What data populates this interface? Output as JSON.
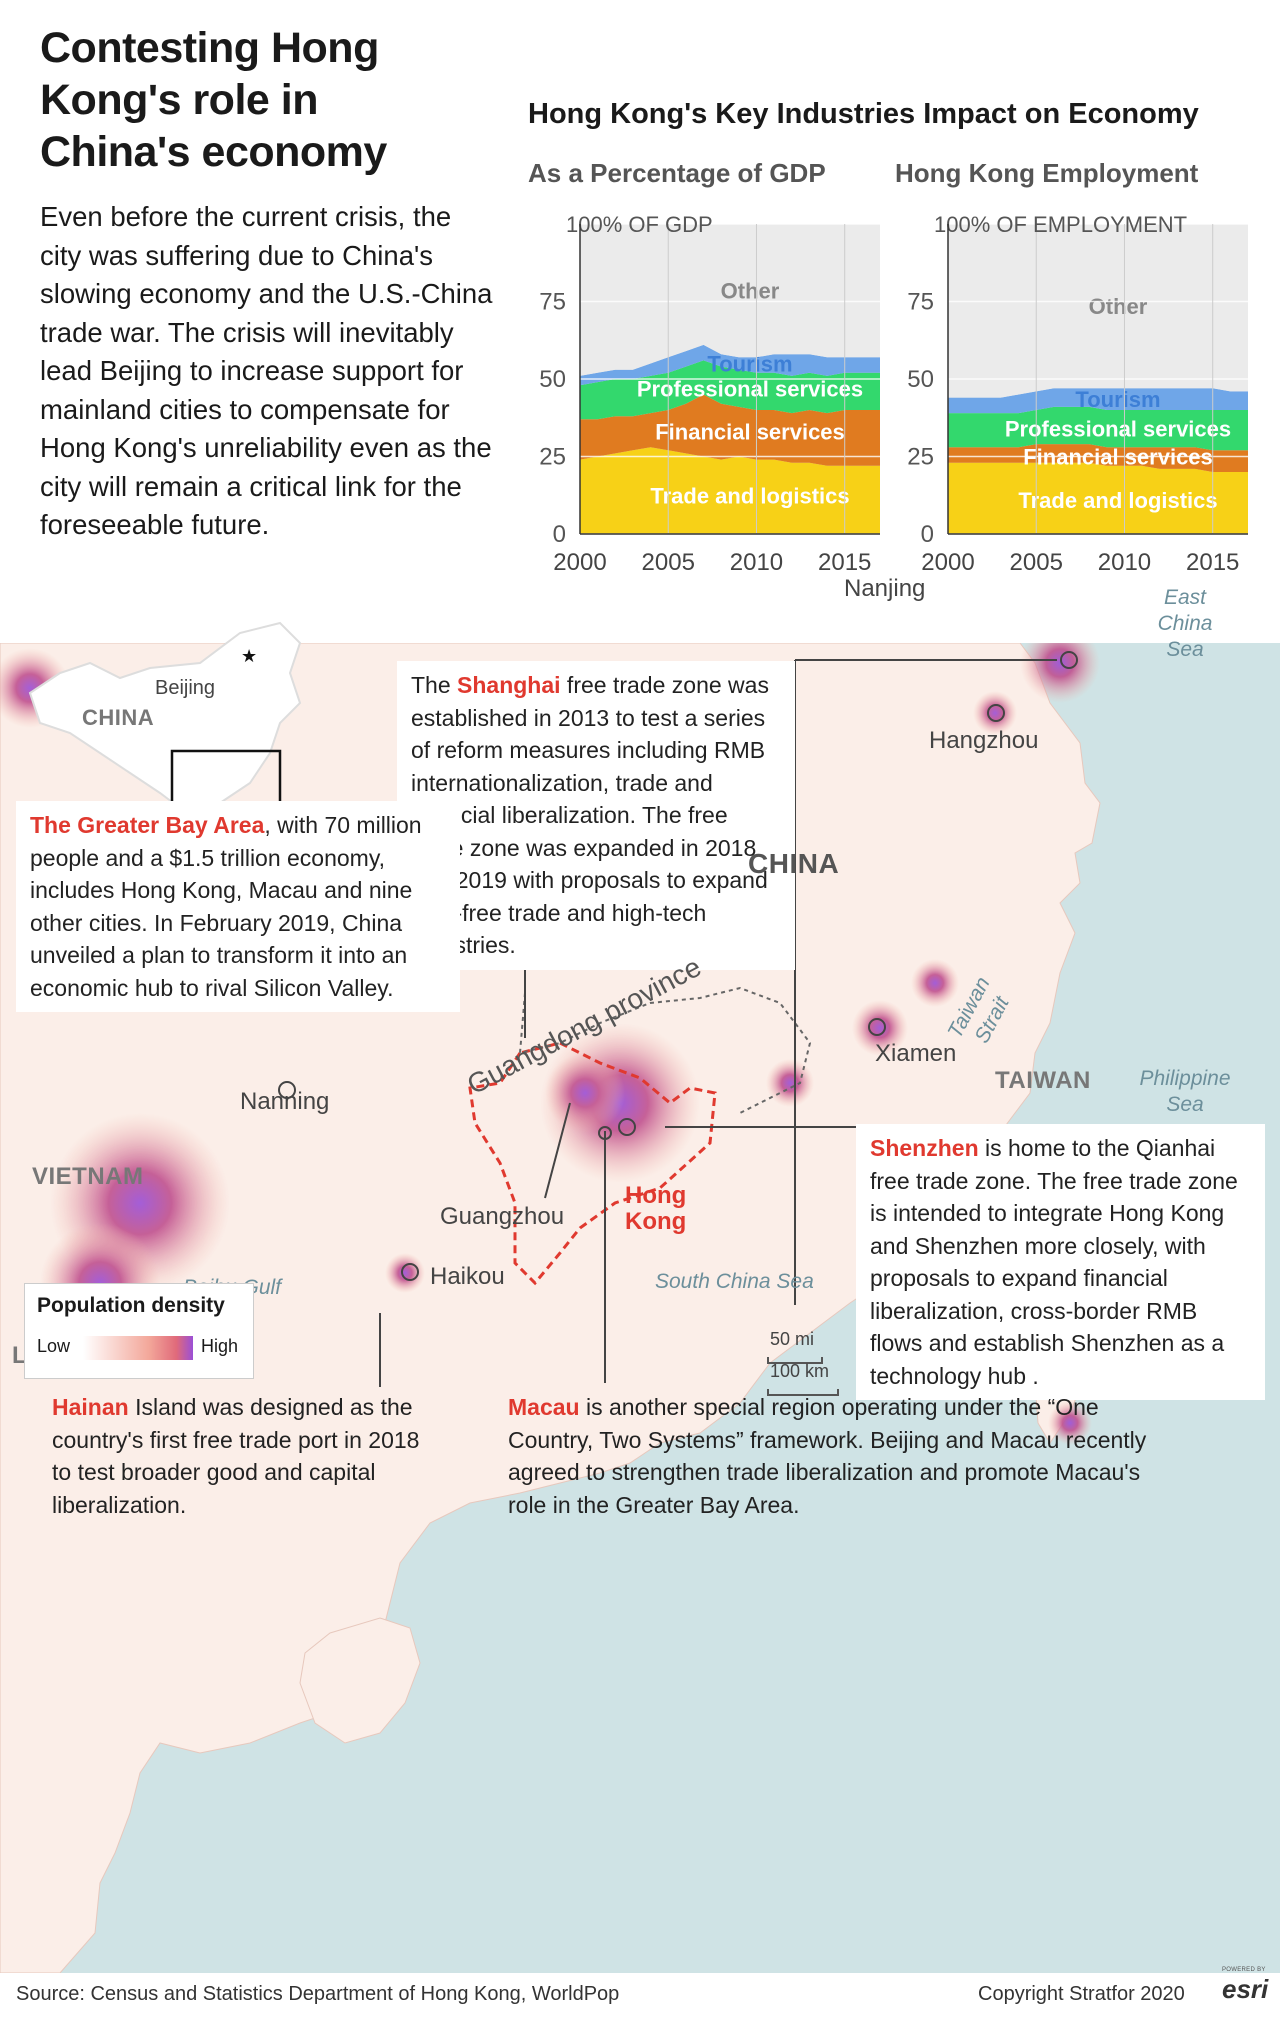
{
  "title": "Contesting Hong Kong's role in China's economy",
  "intro": "Even before the current crisis, the city was suffering due to China's slowing economy and the U.S.-China trade war. The crisis will inevitably lead Beijing to increase support for mainland cities to compensate for Hong Kong's unreliability even as the city will remain a critical link for the foreseeable future.",
  "charts_title": "Hong Kong's Key Industries  Impact on Economy",
  "chart_data": [
    {
      "type": "area",
      "title": "As a Percentage of GDP",
      "ylabel": "100% OF GDP",
      "ylim": [
        0,
        100
      ],
      "yticks": [
        "0",
        "25",
        "50",
        "75"
      ],
      "xticks": [
        "2000",
        "2005",
        "2010",
        "2015"
      ],
      "xlim": [
        2000,
        2017
      ],
      "x": [
        2000,
        2001,
        2002,
        2003,
        2004,
        2005,
        2006,
        2007,
        2008,
        2009,
        2010,
        2011,
        2012,
        2013,
        2014,
        2015,
        2016,
        2017
      ],
      "series": [
        {
          "name": "Trade and logistics",
          "color": "#f7d117",
          "values": [
            24,
            25,
            26,
            27,
            28,
            27,
            26,
            25,
            24,
            25,
            24,
            24,
            23,
            23,
            22,
            22,
            22,
            22
          ]
        },
        {
          "name": "Financial services",
          "color": "#e07b20",
          "values": [
            13,
            12,
            12,
            11,
            11,
            13,
            16,
            20,
            18,
            16,
            16,
            16,
            16,
            17,
            17,
            18,
            18,
            18
          ]
        },
        {
          "name": "Professional services",
          "color": "#33d86d",
          "values": [
            11,
            12,
            12,
            12,
            12,
            12,
            12,
            11,
            12,
            12,
            12,
            12,
            12,
            12,
            12,
            12,
            12,
            12
          ]
        },
        {
          "name": "Tourism",
          "color": "#6fa6e8",
          "values": [
            3,
            3,
            3,
            3,
            4,
            5,
            5,
            5,
            4,
            4,
            5,
            6,
            7,
            6,
            6,
            5,
            5,
            5
          ]
        },
        {
          "name": "Other",
          "color": "#ebebeb",
          "values": [
            49,
            48,
            47,
            47,
            45,
            43,
            41,
            39,
            42,
            43,
            43,
            42,
            42,
            42,
            43,
            43,
            43,
            43
          ]
        }
      ]
    },
    {
      "type": "area",
      "title": "Hong Kong Employment",
      "ylabel": "100% OF EMPLOYMENT",
      "ylim": [
        0,
        100
      ],
      "yticks": [
        "0",
        "25",
        "50",
        "75"
      ],
      "xticks": [
        "2000",
        "2005",
        "2010",
        "2015"
      ],
      "xlim": [
        2000,
        2017
      ],
      "x": [
        2000,
        2001,
        2002,
        2003,
        2004,
        2005,
        2006,
        2007,
        2008,
        2009,
        2010,
        2011,
        2012,
        2013,
        2014,
        2015,
        2016,
        2017
      ],
      "series": [
        {
          "name": "Trade and logistics",
          "color": "#f7d117",
          "values": [
            23,
            23,
            23,
            23,
            23,
            23,
            23,
            23,
            23,
            22,
            22,
            22,
            21,
            21,
            21,
            20,
            20,
            20
          ]
        },
        {
          "name": "Financial services",
          "color": "#e07b20",
          "values": [
            5,
            5,
            5,
            5,
            5,
            6,
            6,
            6,
            6,
            6,
            6,
            6,
            7,
            7,
            7,
            7,
            7,
            7
          ]
        },
        {
          "name": "Professional services",
          "color": "#33d86d",
          "values": [
            11,
            11,
            11,
            11,
            11,
            11,
            12,
            12,
            12,
            12,
            12,
            12,
            12,
            12,
            12,
            13,
            13,
            13
          ]
        },
        {
          "name": "Tourism",
          "color": "#6fa6e8",
          "values": [
            5,
            5,
            5,
            5,
            6,
            6,
            6,
            6,
            6,
            7,
            7,
            7,
            7,
            7,
            7,
            7,
            6,
            6
          ]
        },
        {
          "name": "Other",
          "color": "#ebebeb",
          "values": [
            56,
            56,
            56,
            56,
            55,
            54,
            53,
            53,
            53,
            53,
            53,
            53,
            53,
            53,
            53,
            53,
            54,
            54
          ]
        }
      ]
    }
  ],
  "map": {
    "callouts": {
      "shanghai": {
        "highlight": "Shanghai",
        "pre": "The ",
        "text": " free trade zone was established in 2013 to test a series of reform measures including RMB internationalization, trade and financial liberalization. The free trade zone was expanded in 2018 and 2019 with proposals to expand duty-free trade and high-tech industries."
      },
      "gba": {
        "highlight": "The Greater Bay Area",
        "text": ", with  70 million people and a $1.5 trillion economy, includes Hong Kong, Macau and nine other cities. In February 2019, China unveiled a plan to transform it into an economic hub to rival Silicon Valley."
      },
      "shenzhen": {
        "highlight": "Shenzhen",
        "text": " is home to the Qianhai free trade zone. The free trade zone is intended to integrate Hong Kong and Shenzhen more closely, with proposals to expand financial liberalization, cross-border RMB flows and establish Shenzhen as a technology hub ."
      },
      "hainan": {
        "highlight": "Hainan",
        "text": " Island was designed as the country's first free trade port in 2018 to test broader good and capital liberalization."
      },
      "macau": {
        "highlight": "Macau",
        "text": " is another special region operating under the “One Country, Two Systems” framework. Beijing and Macau recently agreed to strengthen trade liberalization and promote Macau's role in the Greater Bay Area."
      }
    },
    "cities": {
      "nanjing": "Nanjing",
      "hangzhou": "Hangzhou",
      "xiamen": "Xiamen",
      "nanning": "Nanning",
      "guangzhou": "Guangzhou",
      "haikou": "Haikou",
      "hongkong": "Hong Kong",
      "beijing": "Beijing"
    },
    "countries": {
      "china_inset": "CHINA",
      "china": "CHINA",
      "taiwan": "TAIWAN",
      "vietnam": "VIETNAM",
      "laos": "LAOS"
    },
    "seas": {
      "east_china": "East China Sea",
      "south_china": "South China Sea",
      "philippine": "Philippine Sea",
      "beibu": "Beibu Gulf",
      "taiwan_strait": "Taiwan Strait"
    },
    "province": "Guangdong province",
    "legend": {
      "title": "Population density",
      "low": "Low",
      "high": "High"
    },
    "scale": {
      "mi": "50 mi",
      "km": "100 km"
    }
  },
  "footer": {
    "source": "Source: Census and Statistics Department of Hong Kong, WorldPop",
    "copyright": "Copyright Stratfor 2020",
    "esri_small": "POWERED BY",
    "esri": "esri"
  },
  "colors": {
    "highlight": "#e0392f",
    "water": "#cfe3e5",
    "land": "#fbeee8",
    "density_high": "#9b4fd6"
  }
}
